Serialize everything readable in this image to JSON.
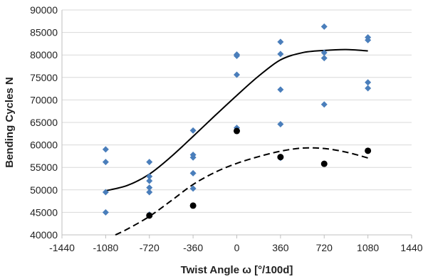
{
  "chart_data": {
    "type": "scatter",
    "title": "",
    "xlabel": "Twist Angle ω [°/100d]",
    "ylabel": "Bending Cycles N",
    "xlim": [
      -1440,
      1440
    ],
    "ylim": [
      40000,
      90000
    ],
    "xticks": [
      "-1440",
      "-1080",
      "-720",
      "-360",
      "0",
      "360",
      "720",
      "1080",
      "1440"
    ],
    "yticks": [
      "40000",
      "45000",
      "50000",
      "55000",
      "60000",
      "65000",
      "70000",
      "75000",
      "80000",
      "85000",
      "90000"
    ],
    "grid": "horizontal",
    "legend": "none",
    "series": [
      {
        "marker": "diamond",
        "color": "#4a7ebb",
        "points": [
          [
            -1080,
            59000
          ],
          [
            -1080,
            56200
          ],
          [
            -1080,
            49500
          ],
          [
            -1080,
            45000
          ],
          [
            -720,
            56200
          ],
          [
            -720,
            53000
          ],
          [
            -720,
            52000
          ],
          [
            -720,
            50500
          ],
          [
            -720,
            49500
          ],
          [
            -720,
            44500
          ],
          [
            -360,
            63200
          ],
          [
            -360,
            57800
          ],
          [
            -360,
            57200
          ],
          [
            -360,
            53700
          ],
          [
            -360,
            50300
          ],
          [
            0,
            80100
          ],
          [
            0,
            79800
          ],
          [
            0,
            75600
          ],
          [
            0,
            63800
          ],
          [
            360,
            82900
          ],
          [
            360,
            80200
          ],
          [
            360,
            72300
          ],
          [
            360,
            64600
          ],
          [
            360,
            57100
          ],
          [
            720,
            86300
          ],
          [
            720,
            80500
          ],
          [
            720,
            79300
          ],
          [
            720,
            69000
          ],
          [
            1080,
            83900
          ],
          [
            1080,
            83300
          ],
          [
            1080,
            73900
          ],
          [
            1080,
            72600
          ]
        ]
      },
      {
        "marker": "circle",
        "color": "#000000",
        "points": [
          [
            -720,
            44300
          ],
          [
            -360,
            46500
          ],
          [
            0,
            63100
          ],
          [
            360,
            57300
          ],
          [
            720,
            55800
          ],
          [
            1080,
            58700
          ]
        ]
      },
      {
        "line": "solid",
        "color": "#000000",
        "x": [
          -1080,
          -900,
          -720,
          -540,
          -360,
          -180,
          0,
          180,
          360,
          540,
          720,
          900,
          1080
        ],
        "y": [
          49800,
          51000,
          53500,
          57400,
          61900,
          66500,
          71000,
          75300,
          78900,
          80500,
          81000,
          81200,
          80900
        ]
      },
      {
        "line": "dashed",
        "color": "#000000",
        "x": [
          -1000,
          -900,
          -720,
          -540,
          -360,
          -180,
          0,
          180,
          360,
          540,
          720,
          900,
          1080
        ],
        "y": [
          40000,
          41300,
          44100,
          47600,
          51200,
          53900,
          55900,
          57400,
          58600,
          59300,
          59200,
          58400,
          57100
        ]
      }
    ]
  }
}
